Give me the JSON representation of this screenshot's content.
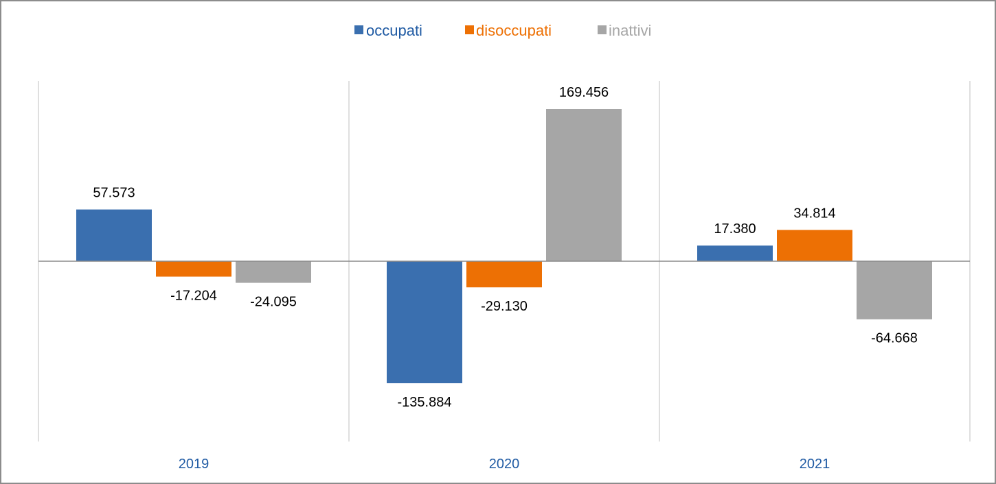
{
  "chart_data": {
    "type": "bar",
    "categories": [
      "2019",
      "2020",
      "2021"
    ],
    "series": [
      {
        "name": "occupati",
        "color": "#3a6faf",
        "values": [
          57573,
          -135884,
          17380
        ],
        "labels": [
          "57.573",
          "-135.884",
          "17.380"
        ]
      },
      {
        "name": "disoccupati",
        "color": "#ed7004",
        "values": [
          -17204,
          -29130,
          34814
        ],
        "labels": [
          "-17.204",
          "-29.130",
          "34.814"
        ]
      },
      {
        "name": "inattivi",
        "color": "#a6a6a6",
        "values": [
          -24095,
          169456,
          -64668
        ],
        "labels": [
          "-24.095",
          "169.456",
          "-64.668"
        ]
      }
    ],
    "legend_position": "top",
    "legend_text_colors": [
      "#1f5aa3",
      "#ed7004",
      "#a6a6a6"
    ],
    "category_label_color": "#1f5aa3",
    "ylim": [
      -205000,
      205000
    ],
    "grid": false,
    "category_separators": true
  }
}
